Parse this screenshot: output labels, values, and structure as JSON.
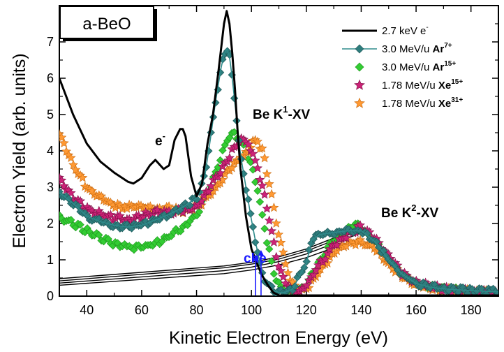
{
  "chart_data": {
    "type": "line",
    "xlabel": "Kinetic Electron Energy (eV)",
    "ylabel": "Electron Yield (arb. units)",
    "xlim": [
      30,
      190
    ],
    "ylim": [
      0,
      8
    ],
    "x_ticks": [
      40,
      60,
      80,
      100,
      120,
      140,
      160,
      180
    ],
    "y_ticks": [
      0,
      1,
      2,
      3,
      4,
      5,
      6,
      7
    ],
    "sample_label": "a-BeO",
    "legend_placement": "top-right",
    "annotations": {
      "electron": "e",
      "electron_sup": "-",
      "k1_main": "Be K",
      "k1_sup": "1",
      "k1_tail": "-XV",
      "k2_main": "Be K",
      "k2_sup": "2",
      "k2_tail": "-XV",
      "che": "che"
    },
    "colors": {
      "electron": "#000000",
      "ar7": "#2e7d7d",
      "ar15": "#33cc33",
      "xe15": "#cc2277",
      "xe31": "#ff9933",
      "annotation_blue": "#1a1aff"
    },
    "series": [
      {
        "legend": "2.7 keV e",
        "legend_sup": "-",
        "marker": "none",
        "x": [
          30,
          35,
          40,
          45,
          50,
          55,
          57,
          60,
          63,
          65,
          68,
          70,
          72,
          74,
          75,
          76,
          78,
          80,
          82,
          84,
          86,
          88,
          90,
          91,
          92,
          93,
          94,
          95,
          96,
          98,
          100,
          102,
          104,
          106,
          108,
          110,
          115,
          120,
          130,
          140,
          150,
          160,
          170,
          180,
          190
        ],
        "y": [
          6.0,
          5.0,
          4.2,
          3.7,
          3.4,
          3.15,
          3.1,
          3.25,
          3.6,
          3.75,
          3.5,
          3.6,
          4.3,
          4.6,
          4.6,
          4.4,
          3.3,
          2.75,
          3.1,
          4.2,
          5.0,
          6.2,
          7.5,
          7.85,
          7.5,
          6.7,
          5.7,
          4.5,
          3.5,
          2.2,
          1.3,
          0.9,
          0.55,
          0.3,
          0.1,
          0.02,
          0.02,
          0.02,
          0.02,
          0.02,
          0.02,
          0.02,
          0.02,
          0.02,
          0.02
        ]
      },
      {
        "legend": "3.0 MeV/u ",
        "legend_bold": "Ar",
        "legend_sup": "7+",
        "marker": "diamond",
        "x": [
          30,
          35,
          40,
          45,
          50,
          55,
          60,
          65,
          70,
          75,
          80,
          83,
          85,
          87,
          89,
          90,
          91,
          92,
          93,
          94,
          95,
          96,
          98,
          100,
          102,
          104,
          106,
          108,
          110,
          112,
          115,
          120,
          122,
          125,
          130,
          135,
          140,
          145,
          150,
          155,
          160,
          165,
          170,
          180,
          190
        ],
        "y": [
          2.85,
          2.55,
          2.2,
          2.05,
          1.95,
          1.9,
          1.95,
          2.1,
          2.25,
          2.45,
          2.7,
          3.3,
          4.3,
          5.4,
          6.3,
          6.65,
          6.8,
          6.6,
          6.0,
          5.3,
          4.6,
          3.9,
          3.0,
          2.1,
          1.3,
          0.6,
          0.3,
          0.15,
          0.1,
          0.1,
          0.2,
          0.9,
          1.55,
          1.7,
          1.75,
          1.8,
          1.8,
          1.5,
          1.0,
          0.6,
          0.35,
          0.25,
          0.2,
          0.15,
          0.12
        ]
      },
      {
        "legend": "3.0 MeV/u ",
        "legend_bold": "Ar",
        "legend_sup": "15+",
        "marker": "diamond",
        "x": [
          30,
          35,
          40,
          45,
          50,
          55,
          60,
          65,
          70,
          75,
          80,
          85,
          88,
          90,
          92,
          94,
          96,
          98,
          100,
          102,
          104,
          106,
          108,
          110,
          112,
          115,
          120,
          125,
          130,
          135,
          138,
          140,
          145,
          150,
          155,
          160,
          170,
          180,
          190
        ],
        "y": [
          2.15,
          2.0,
          1.8,
          1.6,
          1.45,
          1.35,
          1.35,
          1.45,
          1.65,
          1.9,
          2.25,
          3.0,
          3.6,
          4.1,
          4.4,
          4.45,
          4.3,
          4.0,
          3.6,
          3.0,
          2.2,
          1.4,
          0.7,
          0.3,
          0.15,
          0.1,
          0.3,
          1.0,
          1.55,
          1.85,
          1.95,
          1.9,
          1.5,
          1.0,
          0.6,
          0.35,
          0.2,
          0.12,
          0.08
        ]
      },
      {
        "legend": "1.78 MeV/u ",
        "legend_bold": "Xe",
        "legend_sup": "15+",
        "marker": "star",
        "x": [
          30,
          35,
          40,
          45,
          50,
          55,
          60,
          65,
          70,
          75,
          80,
          85,
          90,
          93,
          95,
          97,
          99,
          100,
          102,
          104,
          106,
          108,
          110,
          112,
          114,
          116,
          118,
          120,
          125,
          130,
          135,
          140,
          145,
          150,
          155,
          160,
          170,
          180,
          190
        ],
        "y": [
          3.2,
          2.7,
          2.4,
          2.25,
          2.15,
          2.1,
          2.2,
          2.3,
          2.3,
          2.35,
          2.45,
          3.0,
          3.6,
          4.0,
          4.25,
          4.3,
          4.2,
          4.0,
          3.6,
          3.0,
          2.3,
          1.5,
          0.8,
          0.4,
          0.2,
          0.1,
          0.15,
          0.3,
          0.9,
          1.4,
          1.7,
          1.9,
          1.6,
          1.1,
          0.6,
          0.35,
          0.2,
          0.12,
          0.08
        ]
      },
      {
        "legend": "1.78 MeV/u ",
        "legend_bold": "Xe",
        "legend_sup": "31+",
        "marker": "star",
        "x": [
          30,
          35,
          40,
          45,
          50,
          55,
          60,
          65,
          70,
          75,
          80,
          85,
          90,
          95,
          98,
          100,
          102,
          104,
          106,
          108,
          110,
          112,
          114,
          116,
          118,
          120,
          125,
          130,
          135,
          140,
          145,
          150,
          155,
          160,
          170,
          180,
          190
        ],
        "y": [
          4.5,
          3.6,
          3.0,
          2.7,
          2.5,
          2.45,
          2.45,
          2.4,
          2.4,
          2.35,
          2.45,
          2.8,
          3.3,
          3.75,
          3.9,
          4.2,
          4.3,
          4.0,
          3.3,
          2.5,
          1.7,
          1.0,
          0.5,
          0.25,
          0.15,
          0.2,
          0.7,
          1.2,
          1.45,
          1.5,
          1.3,
          0.9,
          0.55,
          0.3,
          0.18,
          0.12,
          0.08
        ]
      }
    ],
    "background_curves": [
      {
        "x": [
          30,
          90,
          100,
          110,
          120,
          130,
          140
        ],
        "y": [
          0.48,
          0.83,
          0.93,
          1.08,
          1.3,
          1.6,
          1.9
        ]
      },
      {
        "x": [
          30,
          90,
          100,
          110,
          120,
          130,
          140
        ],
        "y": [
          0.42,
          0.78,
          0.88,
          1.02,
          1.24,
          1.53,
          1.82
        ]
      },
      {
        "x": [
          30,
          90,
          100,
          110,
          120,
          130,
          140
        ],
        "y": [
          0.36,
          0.7,
          0.8,
          0.95,
          1.16,
          1.45,
          1.74
        ]
      },
      {
        "x": [
          30,
          90,
          100,
          110,
          120,
          130,
          140
        ],
        "y": [
          0.3,
          0.62,
          0.72,
          0.86,
          1.06,
          1.33,
          1.6
        ]
      }
    ],
    "che_markers": [
      {
        "x": 101.5,
        "y_top": 1.12
      },
      {
        "x": 103.5,
        "y_top": 1.27
      }
    ]
  }
}
